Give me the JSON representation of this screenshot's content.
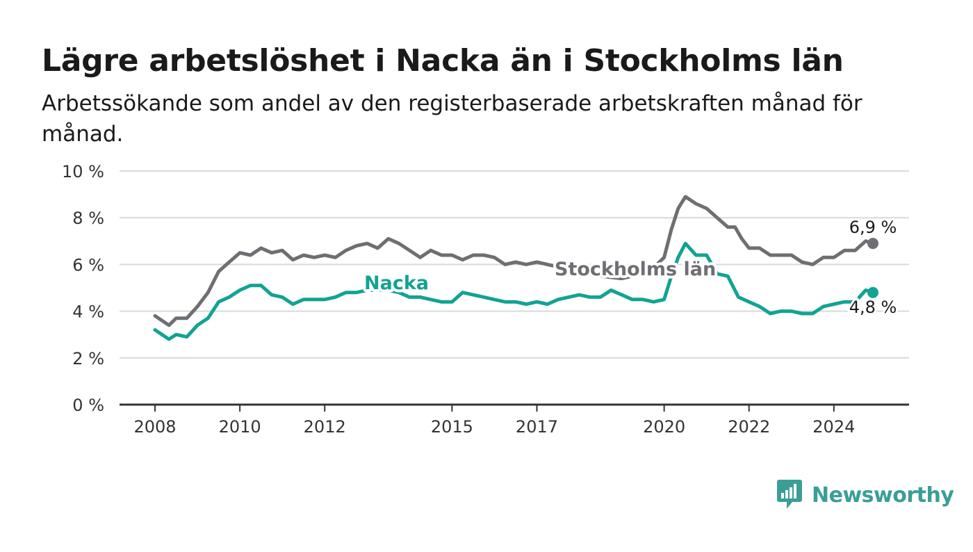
{
  "header": {
    "title": "Lägre arbetslöshet i Nacka än i Stockholms län",
    "subtitle": "Arbetssökande som andel av den registerbaserade arbetskraften månad för månad."
  },
  "logo": {
    "text": "Newsworthy",
    "icon": "newsworthy-chart-bubble-icon"
  },
  "colors": {
    "stockholm": "#6e6e73",
    "nacka": "#12a392",
    "grid": "#d9d9d9",
    "axis": "#333333",
    "logo": "#3a9e96"
  },
  "chart_data": {
    "type": "line",
    "y_ticks": [
      0,
      2,
      4,
      6,
      8,
      10
    ],
    "y_tick_labels": [
      "0 %",
      "2 %",
      "4 %",
      "6 %",
      "8 %",
      "10 %"
    ],
    "ylim": [
      0,
      10
    ],
    "x_ticks": [
      2008,
      2010,
      2012,
      2015,
      2017,
      2020,
      2022,
      2024
    ],
    "x_tick_labels": [
      "2008",
      "2010",
      "2012",
      "2015",
      "2017",
      "2020",
      "2022",
      "2024"
    ],
    "grid": true,
    "series": [
      {
        "name": "Stockholms län",
        "end_label": "6,9 %",
        "points": [
          [
            2008.0,
            3.8
          ],
          [
            2008.33,
            3.4
          ],
          [
            2008.5,
            3.7
          ],
          [
            2008.75,
            3.7
          ],
          [
            2009.0,
            4.2
          ],
          [
            2009.25,
            4.8
          ],
          [
            2009.5,
            5.7
          ],
          [
            2009.75,
            6.1
          ],
          [
            2010.0,
            6.5
          ],
          [
            2010.25,
            6.4
          ],
          [
            2010.5,
            6.7
          ],
          [
            2010.75,
            6.5
          ],
          [
            2011.0,
            6.6
          ],
          [
            2011.25,
            6.2
          ],
          [
            2011.5,
            6.4
          ],
          [
            2011.75,
            6.3
          ],
          [
            2012.0,
            6.4
          ],
          [
            2012.25,
            6.3
          ],
          [
            2012.5,
            6.6
          ],
          [
            2012.75,
            6.8
          ],
          [
            2013.0,
            6.9
          ],
          [
            2013.25,
            6.7
          ],
          [
            2013.5,
            7.1
          ],
          [
            2013.75,
            6.9
          ],
          [
            2014.0,
            6.6
          ],
          [
            2014.25,
            6.3
          ],
          [
            2014.5,
            6.6
          ],
          [
            2014.75,
            6.4
          ],
          [
            2015.0,
            6.4
          ],
          [
            2015.25,
            6.2
          ],
          [
            2015.5,
            6.4
          ],
          [
            2015.75,
            6.4
          ],
          [
            2016.0,
            6.3
          ],
          [
            2016.25,
            6.0
          ],
          [
            2016.5,
            6.1
          ],
          [
            2016.75,
            6.0
          ],
          [
            2017.0,
            6.1
          ],
          [
            2017.25,
            6.0
          ],
          [
            2017.5,
            5.9
          ],
          [
            2017.75,
            5.8
          ],
          [
            2018.0,
            5.7
          ],
          [
            2018.5,
            5.5
          ],
          [
            2019.0,
            5.4
          ],
          [
            2019.5,
            5.6
          ],
          [
            2019.83,
            6.0
          ],
          [
            2020.0,
            6.3
          ],
          [
            2020.17,
            7.5
          ],
          [
            2020.33,
            8.4
          ],
          [
            2020.5,
            8.9
          ],
          [
            2020.75,
            8.6
          ],
          [
            2021.0,
            8.4
          ],
          [
            2021.25,
            8.0
          ],
          [
            2021.5,
            7.6
          ],
          [
            2021.67,
            7.6
          ],
          [
            2021.83,
            7.1
          ],
          [
            2022.0,
            6.7
          ],
          [
            2022.25,
            6.7
          ],
          [
            2022.5,
            6.4
          ],
          [
            2022.75,
            6.4
          ],
          [
            2023.0,
            6.4
          ],
          [
            2023.25,
            6.1
          ],
          [
            2023.5,
            6.0
          ],
          [
            2023.75,
            6.3
          ],
          [
            2024.0,
            6.3
          ],
          [
            2024.25,
            6.6
          ],
          [
            2024.5,
            6.6
          ],
          [
            2024.75,
            7.0
          ],
          [
            2024.92,
            6.9
          ]
        ]
      },
      {
        "name": "Nacka",
        "end_label": "4,8 %",
        "points": [
          [
            2008.0,
            3.2
          ],
          [
            2008.33,
            2.8
          ],
          [
            2008.5,
            3.0
          ],
          [
            2008.75,
            2.9
          ],
          [
            2009.0,
            3.4
          ],
          [
            2009.25,
            3.7
          ],
          [
            2009.5,
            4.4
          ],
          [
            2009.75,
            4.6
          ],
          [
            2010.0,
            4.9
          ],
          [
            2010.25,
            5.1
          ],
          [
            2010.5,
            5.1
          ],
          [
            2010.75,
            4.7
          ],
          [
            2011.0,
            4.6
          ],
          [
            2011.25,
            4.3
          ],
          [
            2011.5,
            4.5
          ],
          [
            2011.75,
            4.5
          ],
          [
            2012.0,
            4.5
          ],
          [
            2012.25,
            4.6
          ],
          [
            2012.5,
            4.8
          ],
          [
            2012.75,
            4.8
          ],
          [
            2013.0,
            4.9
          ],
          [
            2013.25,
            4.9
          ],
          [
            2013.5,
            4.9
          ],
          [
            2013.75,
            4.8
          ],
          [
            2014.0,
            4.6
          ],
          [
            2014.25,
            4.6
          ],
          [
            2014.5,
            4.5
          ],
          [
            2014.75,
            4.4
          ],
          [
            2015.0,
            4.4
          ],
          [
            2015.25,
            4.8
          ],
          [
            2015.5,
            4.7
          ],
          [
            2015.75,
            4.6
          ],
          [
            2016.0,
            4.5
          ],
          [
            2016.25,
            4.4
          ],
          [
            2016.5,
            4.4
          ],
          [
            2016.75,
            4.3
          ],
          [
            2017.0,
            4.4
          ],
          [
            2017.25,
            4.3
          ],
          [
            2017.5,
            4.5
          ],
          [
            2017.75,
            4.6
          ],
          [
            2018.0,
            4.7
          ],
          [
            2018.25,
            4.6
          ],
          [
            2018.5,
            4.6
          ],
          [
            2018.75,
            4.9
          ],
          [
            2019.0,
            4.7
          ],
          [
            2019.25,
            4.5
          ],
          [
            2019.5,
            4.5
          ],
          [
            2019.75,
            4.4
          ],
          [
            2020.0,
            4.5
          ],
          [
            2020.17,
            5.5
          ],
          [
            2020.33,
            6.3
          ],
          [
            2020.5,
            6.9
          ],
          [
            2020.75,
            6.4
          ],
          [
            2021.0,
            6.4
          ],
          [
            2021.25,
            5.6
          ],
          [
            2021.5,
            5.5
          ],
          [
            2021.75,
            4.6
          ],
          [
            2022.0,
            4.4
          ],
          [
            2022.25,
            4.2
          ],
          [
            2022.5,
            3.9
          ],
          [
            2022.75,
            4.0
          ],
          [
            2023.0,
            4.0
          ],
          [
            2023.25,
            3.9
          ],
          [
            2023.5,
            3.9
          ],
          [
            2023.75,
            4.2
          ],
          [
            2024.0,
            4.3
          ],
          [
            2024.25,
            4.4
          ],
          [
            2024.5,
            4.4
          ],
          [
            2024.75,
            4.9
          ],
          [
            2024.92,
            4.8
          ]
        ]
      }
    ]
  }
}
